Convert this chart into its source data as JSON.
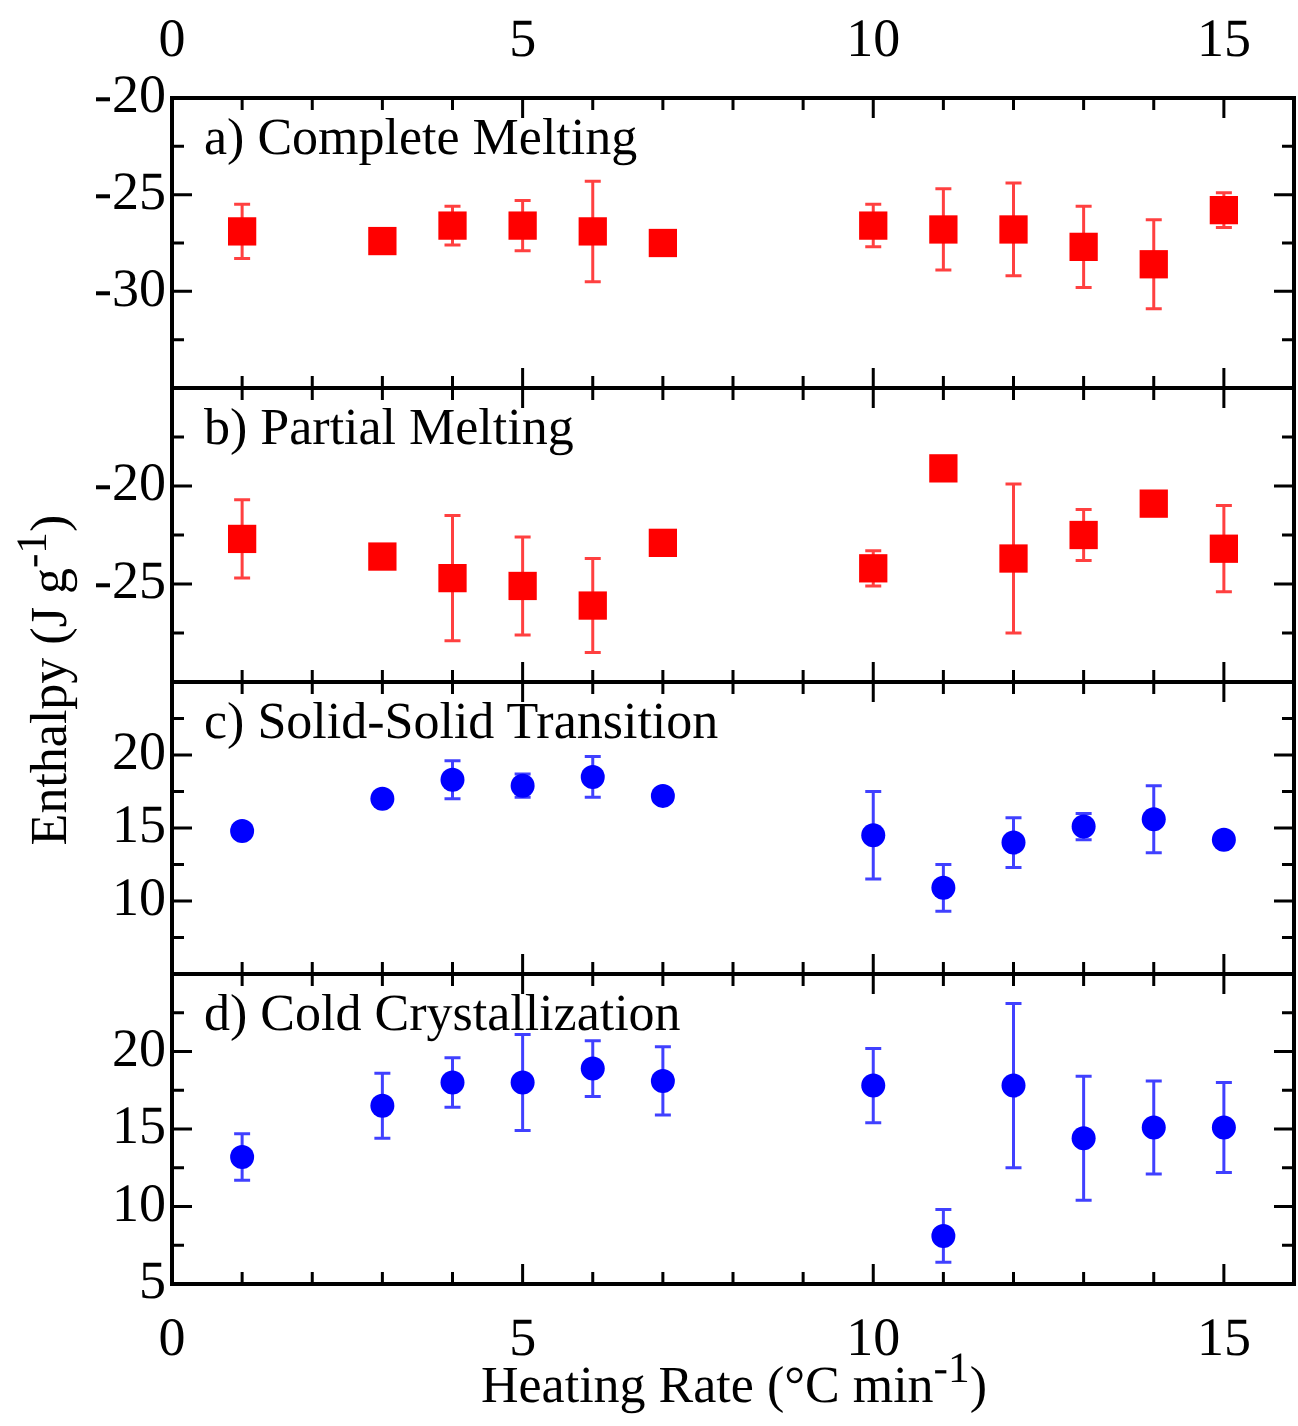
{
  "chart_data": [
    {
      "type": "scatter",
      "title": "a) Complete Melting",
      "marker": "square",
      "tick_labels": "y",
      "xlim": [
        0,
        16
      ],
      "xticks": [
        0,
        {
          "value": 1,
          "label": null
        },
        {
          "value": 2,
          "label": null
        },
        {
          "value": 3,
          "label": null
        },
        {
          "value": 4,
          "label": null
        },
        5,
        {
          "value": 6,
          "label": null
        },
        {
          "value": 7,
          "label": null
        },
        {
          "value": 8,
          "label": null
        },
        {
          "value": 9,
          "label": null
        },
        10,
        {
          "value": 11,
          "label": null
        },
        {
          "value": 12,
          "label": null
        },
        {
          "value": 13,
          "label": null
        },
        {
          "value": 14,
          "label": null
        },
        15
      ],
      "x2lim": [
        0,
        16
      ],
      "x2ticks": [
        0,
        {
          "value": 1,
          "label": null
        },
        {
          "value": 2,
          "label": null
        },
        {
          "value": 3,
          "label": null
        },
        {
          "value": 4,
          "label": null
        },
        5,
        {
          "value": 6,
          "label": null
        },
        {
          "value": 7,
          "label": null
        },
        {
          "value": 8,
          "label": null
        },
        {
          "value": 9,
          "label": null
        },
        10,
        {
          "value": 11,
          "label": null
        },
        {
          "value": 12,
          "label": null
        },
        {
          "value": 13,
          "label": null
        },
        {
          "value": 14,
          "label": null
        },
        15
      ],
      "ylim": [
        -35,
        -20
      ],
      "yticks": [
        {
          "value": -32.5,
          "label": null
        },
        -30,
        {
          "value": -27.5,
          "label": null
        },
        -25,
        {
          "value": -22.5,
          "label": null
        },
        -20
      ],
      "series": [
        {
          "color": "#ff0000",
          "x": [
            1,
            3,
            4,
            5,
            6,
            7,
            10,
            11,
            12,
            13,
            14,
            15
          ],
          "values": [
            -26.9,
            -27.4,
            -26.6,
            -26.6,
            -26.9,
            -27.5,
            -26.6,
            -26.8,
            -26.8,
            -27.7,
            -28.6,
            -25.8
          ],
          "errors": [
            1.4,
            null,
            1,
            1.3,
            2.6,
            null,
            1.1,
            2.1,
            2.4,
            2.1,
            2.3,
            0.9
          ]
        }
      ]
    },
    {
      "type": "scatter",
      "title": "b) Partial Melting",
      "marker": "square",
      "tick_labels": "y",
      "ylabel": "Enthalpy (J g$^{-1}$)",
      "xlim": [
        0,
        16
      ],
      "xticks": [
        0,
        {
          "value": 1,
          "label": null
        },
        {
          "value": 2,
          "label": null
        },
        {
          "value": 3,
          "label": null
        },
        {
          "value": 4,
          "label": null
        },
        5,
        {
          "value": 6,
          "label": null
        },
        {
          "value": 7,
          "label": null
        },
        {
          "value": 8,
          "label": null
        },
        {
          "value": 9,
          "label": null
        },
        10,
        {
          "value": 11,
          "label": null
        },
        {
          "value": 12,
          "label": null
        },
        {
          "value": 13,
          "label": null
        },
        {
          "value": 14,
          "label": null
        },
        15
      ],
      "ylim": [
        -30,
        -15
      ],
      "yticks": [
        {
          "value": -27.5,
          "label": null
        },
        -25,
        {
          "value": -22.5,
          "label": null
        },
        -20,
        {
          "value": -17.5,
          "label": null
        }
      ],
      "series": [
        {
          "color": "#ff0000",
          "x": [
            1,
            3,
            4,
            5,
            6,
            7,
            10,
            11,
            12,
            13,
            14,
            15
          ],
          "values": [
            -22.7,
            -23.6,
            -24.7,
            -25.1,
            -26.1,
            -22.9,
            -24.2,
            -19.1,
            -23.7,
            -22.5,
            -20.9,
            -23.2
          ],
          "errors": [
            2,
            null,
            3.2,
            2.5,
            2.4,
            null,
            0.9,
            null,
            3.8,
            1.3,
            null,
            2.2
          ]
        }
      ]
    },
    {
      "type": "scatter",
      "title": "c) Solid-Solid Transition",
      "marker": "circle",
      "tick_labels": "y",
      "xlim": [
        0,
        16
      ],
      "xticks": [
        0,
        {
          "value": 1,
          "label": null
        },
        {
          "value": 2,
          "label": null
        },
        {
          "value": 3,
          "label": null
        },
        {
          "value": 4,
          "label": null
        },
        5,
        {
          "value": 6,
          "label": null
        },
        {
          "value": 7,
          "label": null
        },
        {
          "value": 8,
          "label": null
        },
        {
          "value": 9,
          "label": null
        },
        10,
        {
          "value": 11,
          "label": null
        },
        {
          "value": 12,
          "label": null
        },
        {
          "value": 13,
          "label": null
        },
        {
          "value": 14,
          "label": null
        },
        15
      ],
      "ylim": [
        5,
        25
      ],
      "yticks": [
        {
          "value": 7.5,
          "label": null
        },
        10,
        {
          "value": 12.5,
          "label": null
        },
        15,
        {
          "value": 17.5,
          "label": null
        },
        20,
        {
          "value": 22.5,
          "label": null
        }
      ],
      "series": [
        {
          "color": "#0000ff",
          "x": [
            1,
            3,
            4,
            5,
            6,
            7,
            10,
            11,
            12,
            13,
            14,
            15
          ],
          "values": [
            14.8,
            17,
            18.3,
            17.9,
            18.5,
            17.2,
            14.5,
            10.9,
            14,
            15.1,
            15.6,
            14.2
          ],
          "errors": [
            null,
            null,
            1.3,
            0.8,
            1.4,
            null,
            3,
            1.6,
            1.7,
            0.9,
            2.3,
            null
          ]
        }
      ]
    },
    {
      "type": "scatter",
      "title": "d) Cold Crystallization",
      "marker": "circle",
      "xlabel": "Heating Rate (°C min$^{-1}$)",
      "xlim": [
        0,
        16
      ],
      "xticks": [
        0,
        {
          "value": 1,
          "label": null
        },
        {
          "value": 2,
          "label": null
        },
        {
          "value": 3,
          "label": null
        },
        {
          "value": 4,
          "label": null
        },
        5,
        {
          "value": 6,
          "label": null
        },
        {
          "value": 7,
          "label": null
        },
        {
          "value": 8,
          "label": null
        },
        {
          "value": 9,
          "label": null
        },
        10,
        {
          "value": 11,
          "label": null
        },
        {
          "value": 12,
          "label": null
        },
        {
          "value": 13,
          "label": null
        },
        {
          "value": 14,
          "label": null
        },
        15
      ],
      "ylim": [
        5,
        25
      ],
      "yticks": [
        5,
        {
          "value": 7.5,
          "label": null
        },
        10,
        {
          "value": 12.5,
          "label": null
        },
        15,
        {
          "value": 17.5,
          "label": null
        },
        20,
        {
          "value": 22.5,
          "label": null
        }
      ],
      "series": [
        {
          "color": "#0000ff",
          "x": [
            1,
            3,
            4,
            5,
            6,
            7,
            10,
            11,
            12,
            13,
            14,
            15
          ],
          "values": [
            13.2,
            16.5,
            18,
            18,
            18.9,
            18.1,
            17.8,
            8.1,
            17.8,
            14.4,
            15.1,
            15.1
          ],
          "errors": [
            1.5,
            2.1,
            1.6,
            3.1,
            1.8,
            2.2,
            2.4,
            1.7,
            5.3,
            4,
            3,
            2.9
          ]
        }
      ]
    }
  ]
}
